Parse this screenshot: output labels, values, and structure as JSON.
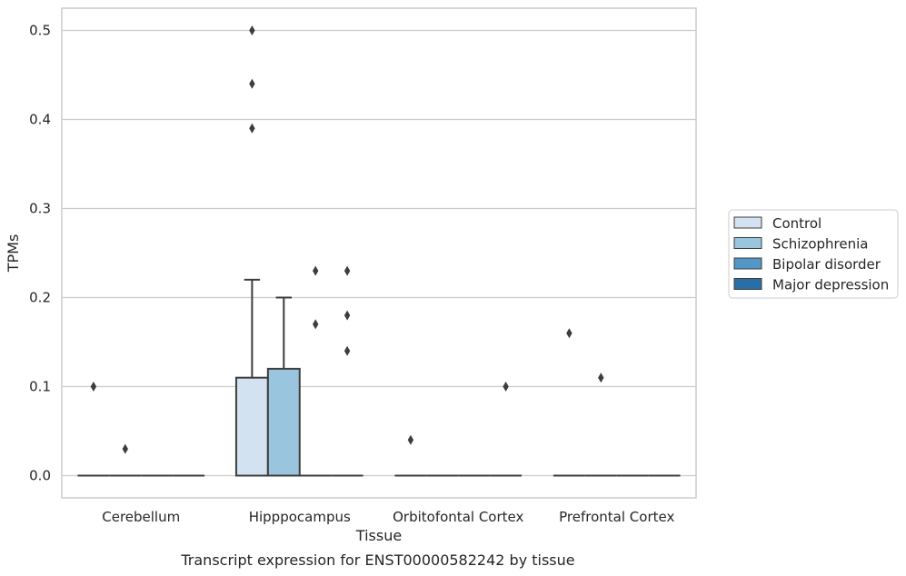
{
  "chart_data": {
    "type": "box",
    "title": "",
    "caption": "Transcript expression for ENST00000582242 by tissue",
    "xlabel": "Tissue",
    "ylabel": "TPMs",
    "ylim": [
      -0.025,
      0.525
    ],
    "yticks": [
      "0.0",
      "0.1",
      "0.2",
      "0.3",
      "0.4",
      "0.5"
    ],
    "grid": "horizontal",
    "legend_position": "right",
    "categories": [
      "Cerebellum",
      "Hipppocampus",
      "Orbitofontal Cortex",
      "Prefrontal Cortex"
    ],
    "series": [
      {
        "name": "Control",
        "color": "#d2e2f1",
        "boxes": [
          {
            "q1": 0,
            "median": 0,
            "q3": 0,
            "whisker_low": 0,
            "whisker_high": 0,
            "outliers": [
              0.1
            ]
          },
          {
            "q1": 0,
            "median": 0,
            "q3": 0.11,
            "whisker_low": 0,
            "whisker_high": 0.22,
            "outliers": [
              0.39,
              0.44,
              0.5
            ]
          },
          {
            "q1": 0,
            "median": 0,
            "q3": 0,
            "whisker_low": 0,
            "whisker_high": 0,
            "outliers": [
              0.04
            ]
          },
          {
            "q1": 0,
            "median": 0,
            "q3": 0,
            "whisker_low": 0,
            "whisker_high": 0,
            "outliers": [
              0.16
            ]
          }
        ]
      },
      {
        "name": "Schizophrenia",
        "color": "#9ac5de",
        "boxes": [
          {
            "q1": 0,
            "median": 0,
            "q3": 0,
            "whisker_low": 0,
            "whisker_high": 0,
            "outliers": [
              0.03
            ]
          },
          {
            "q1": 0,
            "median": 0,
            "q3": 0.12,
            "whisker_low": 0,
            "whisker_high": 0.2,
            "outliers": []
          },
          {
            "q1": 0,
            "median": 0,
            "q3": 0,
            "whisker_low": 0,
            "whisker_high": 0,
            "outliers": []
          },
          {
            "q1": 0,
            "median": 0,
            "q3": 0,
            "whisker_low": 0,
            "whisker_high": 0,
            "outliers": [
              0.11
            ]
          }
        ]
      },
      {
        "name": "Bipolar disorder",
        "color": "#5497c6",
        "boxes": [
          {
            "q1": 0,
            "median": 0,
            "q3": 0,
            "whisker_low": 0,
            "whisker_high": 0,
            "outliers": []
          },
          {
            "q1": 0,
            "median": 0,
            "q3": 0,
            "whisker_low": 0,
            "whisker_high": 0,
            "outliers": [
              0.17,
              0.23
            ]
          },
          {
            "q1": 0,
            "median": 0,
            "q3": 0,
            "whisker_low": 0,
            "whisker_high": 0,
            "outliers": []
          },
          {
            "q1": 0,
            "median": 0,
            "q3": 0,
            "whisker_low": 0,
            "whisker_high": 0,
            "outliers": []
          }
        ]
      },
      {
        "name": "Major depression",
        "color": "#2a6ea6",
        "boxes": [
          {
            "q1": 0,
            "median": 0,
            "q3": 0,
            "whisker_low": 0,
            "whisker_high": 0,
            "outliers": []
          },
          {
            "q1": 0,
            "median": 0,
            "q3": 0,
            "whisker_low": 0,
            "whisker_high": 0,
            "outliers": [
              0.14,
              0.18,
              0.23
            ]
          },
          {
            "q1": 0,
            "median": 0,
            "q3": 0,
            "whisker_low": 0,
            "whisker_high": 0,
            "outliers": [
              0.1
            ]
          },
          {
            "q1": 0,
            "median": 0,
            "q3": 0,
            "whisker_low": 0,
            "whisker_high": 0,
            "outliers": []
          }
        ]
      }
    ]
  }
}
